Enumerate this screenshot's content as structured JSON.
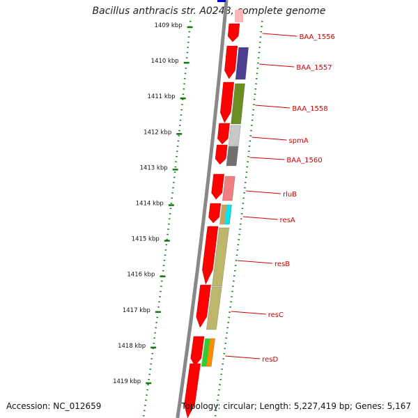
{
  "title": "Bacillus anthracis str. A0248, complete genome",
  "footer": {
    "accession": "Accession: NC_012659",
    "summary": "Topology: circular; Length: 5,227,419 bp; Genes: 5,167"
  },
  "colors": {
    "backbone": "#888888",
    "tick_dots": "#117711",
    "forward_gene": "#ff0000",
    "label_line": "#cc0000"
  },
  "ruler": [
    {
      "label": "1409 kbp"
    },
    {
      "label": "1410 kbp"
    },
    {
      "label": "1411 kbp"
    },
    {
      "label": "1412 kbp"
    },
    {
      "label": "1413 kbp"
    },
    {
      "label": "1414 kbp"
    },
    {
      "label": "1415 kbp"
    },
    {
      "label": "1416 kbp"
    },
    {
      "label": "1417 kbp"
    },
    {
      "label": "1418 kbp"
    },
    {
      "label": "1419 kbp"
    }
  ],
  "features": [
    {
      "name": "BAA_1556",
      "color": "#7a7a7a"
    },
    {
      "name": "BAA_1557",
      "color": "#4b3f8f"
    },
    {
      "name": "BAA_1558",
      "color": "#6b8e23"
    },
    {
      "name": "spmA",
      "color": "#c8c8c8"
    },
    {
      "name": "BAA_1560",
      "color": "#707070"
    },
    {
      "name": "rluB",
      "color": "#f08080"
    },
    {
      "name": "resA",
      "color": "#00e5ee"
    },
    {
      "name": "resB",
      "color": "#bdb76b"
    },
    {
      "name": "resC",
      "color": "#bdb76b"
    },
    {
      "name": "resD",
      "color": "#ff8c00"
    }
  ]
}
